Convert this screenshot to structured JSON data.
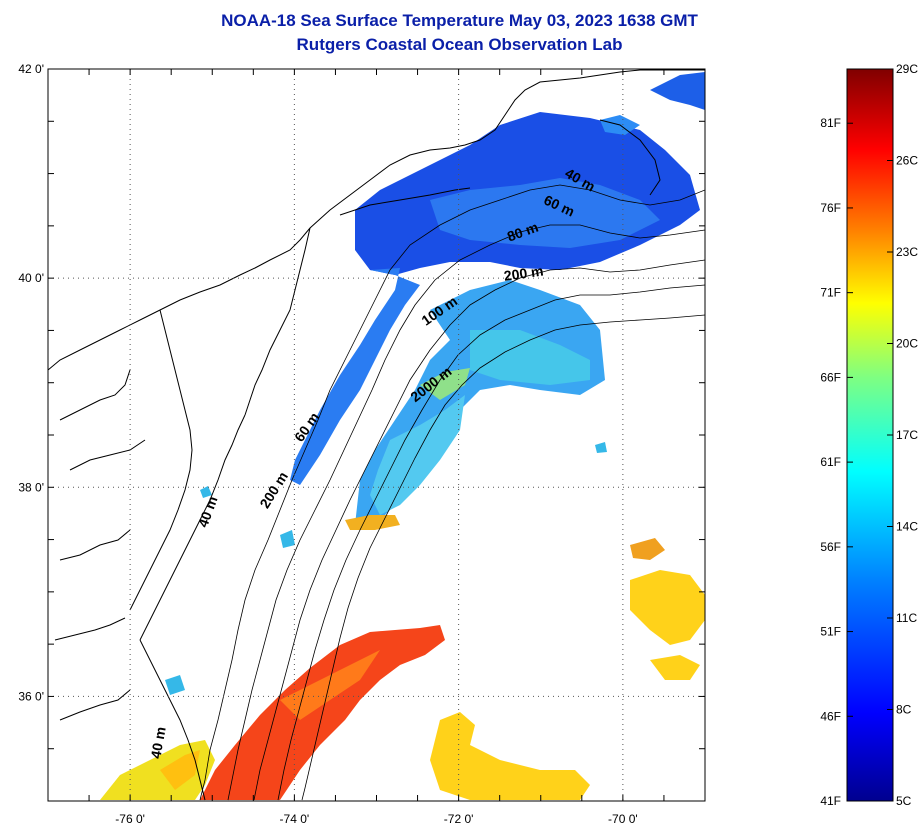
{
  "header": {
    "title": "NOAA-18 Sea Surface Temperature May 03, 2023 1638 GMT",
    "subtitle": "Rutgers Coastal Ocean Observation Lab"
  },
  "map": {
    "lon_range": [
      -77,
      -69
    ],
    "lat_range": [
      35,
      42
    ],
    "lon_ticks": [
      {
        "lon": -76,
        "label": "-76 0'"
      },
      {
        "lon": -74,
        "label": "-74 0'"
      },
      {
        "lon": -72,
        "label": "-72 0'"
      },
      {
        "lon": -70,
        "label": "-70 0'"
      }
    ],
    "lat_ticks": [
      {
        "lat": 42,
        "label": "42 0'"
      },
      {
        "lat": 40,
        "label": "40 0'"
      },
      {
        "lat": 38,
        "label": "38 0'"
      },
      {
        "lat": 36,
        "label": "36 0'"
      }
    ],
    "grid": "dotted",
    "isobath_labels": [
      {
        "text": "40 m",
        "lon": -70.55,
        "lat": 40.9,
        "angle": 30
      },
      {
        "text": "60 m",
        "lon": -70.8,
        "lat": 40.65,
        "angle": 25
      },
      {
        "text": "80 m",
        "lon": -71.2,
        "lat": 40.4,
        "angle": -20
      },
      {
        "text": "200 m",
        "lon": -71.2,
        "lat": 40.0,
        "angle": -8
      },
      {
        "text": "100 m",
        "lon": -72.2,
        "lat": 39.65,
        "angle": -35
      },
      {
        "text": "2000 m",
        "lon": -72.3,
        "lat": 38.95,
        "angle": -38
      },
      {
        "text": "60 m",
        "lon": -73.8,
        "lat": 38.55,
        "angle": -55
      },
      {
        "text": "200 m",
        "lon": -74.2,
        "lat": 37.95,
        "angle": -58
      },
      {
        "text": "40 m",
        "lon": -75.0,
        "lat": 37.75,
        "angle": -70
      },
      {
        "text": "40 m",
        "lon": -75.6,
        "lat": 35.55,
        "angle": -80
      }
    ]
  },
  "colorbar": {
    "colors": [
      "#00008f",
      "#0000ff",
      "#0080ff",
      "#00ffff",
      "#80ff80",
      "#ffff00",
      "#ff8000",
      "#ff0000",
      "#800000"
    ],
    "celsius_labels": [
      "29C",
      "26C",
      "23C",
      "20C",
      "17C",
      "14C",
      "11C",
      "8C",
      "5C"
    ],
    "fahrenheit_labels": [
      "81F",
      "76F",
      "71F",
      "66F",
      "61F",
      "56F",
      "51F",
      "46F",
      "41F"
    ]
  }
}
